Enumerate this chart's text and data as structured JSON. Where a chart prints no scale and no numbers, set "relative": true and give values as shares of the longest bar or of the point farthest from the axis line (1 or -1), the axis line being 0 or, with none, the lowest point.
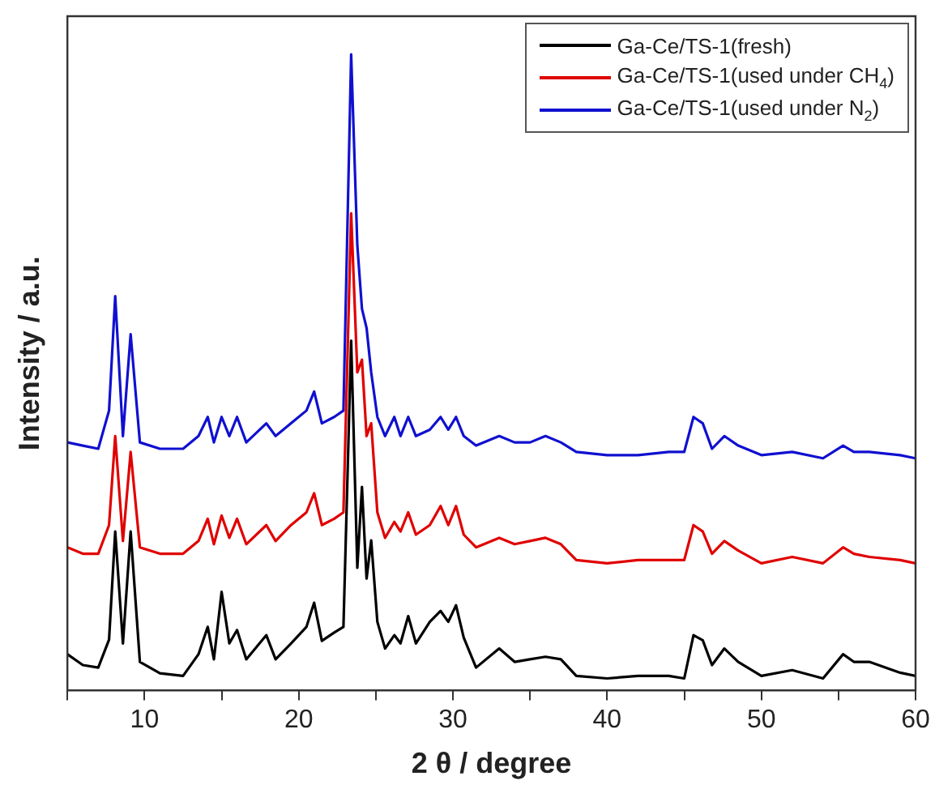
{
  "chart_data": {
    "type": "line",
    "xlabel": "2 θ / degree",
    "ylabel": "Intensity / a.u.",
    "relative": true,
    "x": [
      5,
      6,
      7,
      7.7,
      8.1,
      8.6,
      9.1,
      9.7,
      11,
      12.5,
      13.5,
      14.1,
      14.5,
      15.0,
      15.5,
      16.0,
      16.6,
      17.9,
      18.5,
      19.5,
      20.5,
      21.0,
      21.5,
      22.3,
      22.9,
      23.4,
      23.8,
      24.1,
      24.4,
      24.7,
      25.1,
      25.6,
      26.2,
      26.6,
      27.1,
      27.6,
      28.5,
      29.2,
      29.7,
      30.2,
      30.7,
      31.5,
      33,
      34,
      35,
      36,
      37,
      38,
      40,
      42,
      44,
      45,
      45.6,
      46.2,
      46.8,
      47.6,
      48.5,
      50,
      52,
      54,
      55.3,
      56,
      57,
      59,
      60
    ],
    "xlim": [
      5,
      60
    ],
    "xticks": [
      {
        "value": 5,
        "label": null
      },
      10,
      {
        "value": 15,
        "label": null
      },
      20,
      {
        "value": 25,
        "label": null
      },
      30,
      {
        "value": 35,
        "label": null
      },
      40,
      {
        "value": 45,
        "label": null
      },
      50,
      {
        "value": 55,
        "label": null
      },
      60
    ],
    "series": [
      {
        "name": "Ga-Ce/TS-1(fresh)",
        "color": "#000000",
        "values": [
          0.057,
          0.04,
          0.036,
          0.08,
          0.25,
          0.074,
          0.25,
          0.045,
          0.027,
          0.023,
          0.057,
          0.1,
          0.049,
          0.155,
          0.074,
          0.095,
          0.049,
          0.087,
          0.049,
          0.074,
          0.1,
          0.138,
          0.078,
          0.091,
          0.1,
          0.55,
          0.193,
          0.32,
          0.176,
          0.236,
          0.108,
          0.066,
          0.087,
          0.074,
          0.117,
          0.074,
          0.108,
          0.125,
          0.108,
          0.134,
          0.083,
          0.036,
          0.066,
          0.045,
          0.049,
          0.053,
          0.049,
          0.023,
          0.019,
          0.023,
          0.023,
          0.019,
          0.087,
          0.079,
          0.04,
          0.066,
          0.045,
          0.023,
          0.032,
          0.019,
          0.057,
          0.045,
          0.045,
          0.028,
          0.023
        ]
      },
      {
        "name": "Ga-Ce/TS-1(used under CH$_{4}$)",
        "color": "#e00000",
        "values": [
          0.225,
          0.215,
          0.215,
          0.26,
          0.4,
          0.235,
          0.375,
          0.225,
          0.215,
          0.215,
          0.235,
          0.27,
          0.23,
          0.275,
          0.24,
          0.27,
          0.23,
          0.26,
          0.235,
          0.26,
          0.28,
          0.31,
          0.26,
          0.27,
          0.28,
          0.75,
          0.5,
          0.52,
          0.4,
          0.42,
          0.28,
          0.24,
          0.265,
          0.25,
          0.28,
          0.245,
          0.26,
          0.29,
          0.26,
          0.29,
          0.245,
          0.225,
          0.24,
          0.23,
          0.235,
          0.24,
          0.23,
          0.205,
          0.2,
          0.205,
          0.205,
          0.205,
          0.26,
          0.25,
          0.215,
          0.235,
          0.22,
          0.2,
          0.21,
          0.2,
          0.225,
          0.215,
          0.21,
          0.205,
          0.2
        ]
      },
      {
        "name": "Ga-Ce/TS-1(used under N$_{2}$)",
        "color": "#1010d0",
        "values": [
          0.39,
          0.385,
          0.38,
          0.44,
          0.62,
          0.4,
          0.56,
          0.39,
          0.38,
          0.38,
          0.4,
          0.43,
          0.39,
          0.43,
          0.4,
          0.43,
          0.39,
          0.42,
          0.4,
          0.42,
          0.44,
          0.47,
          0.42,
          0.43,
          0.44,
          1.0,
          0.7,
          0.6,
          0.57,
          0.5,
          0.43,
          0.4,
          0.43,
          0.4,
          0.43,
          0.4,
          0.41,
          0.43,
          0.41,
          0.43,
          0.4,
          0.385,
          0.4,
          0.39,
          0.39,
          0.4,
          0.39,
          0.375,
          0.37,
          0.37,
          0.375,
          0.375,
          0.43,
          0.42,
          0.38,
          0.4,
          0.385,
          0.37,
          0.375,
          0.365,
          0.385,
          0.375,
          0.375,
          0.37,
          0.365
        ]
      }
    ],
    "legend": "top right",
    "grid": false,
    "marker": "none",
    "line_style": "solid"
  }
}
